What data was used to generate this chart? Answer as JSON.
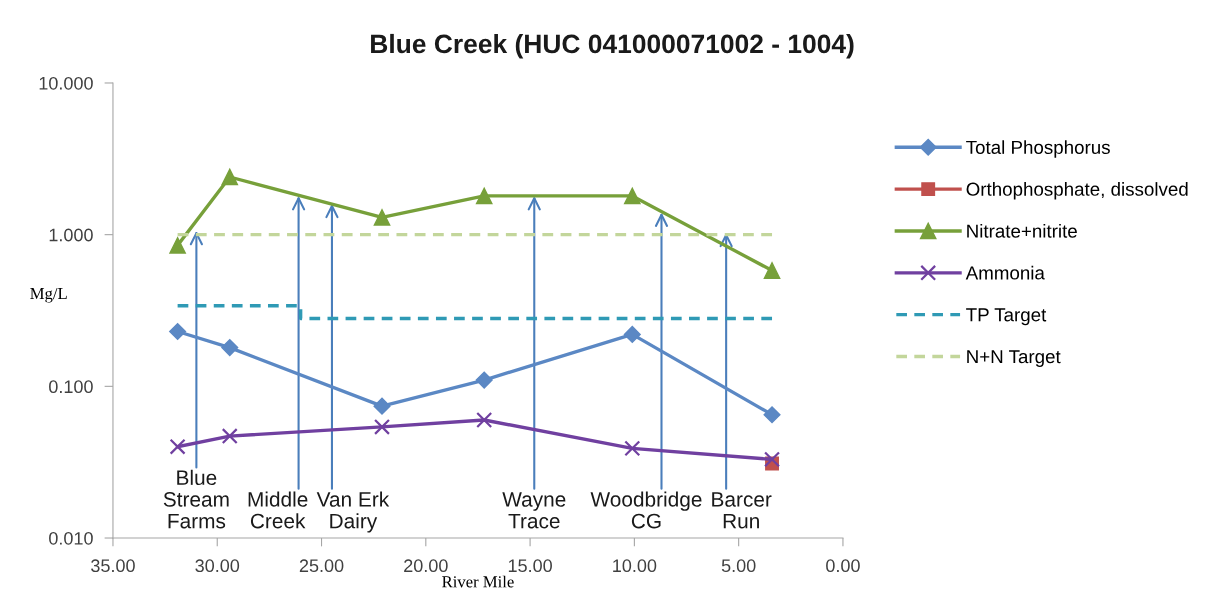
{
  "chart_data": {
    "type": "line",
    "title": "Blue Creek (HUC 041000071002 - 1004)",
    "xlabel": "River Mile",
    "ylabel": "Mg/L",
    "log": "y",
    "x": [
      31.9,
      29.4,
      22.1,
      17.2,
      10.1,
      3.4
    ],
    "xlim": [
      35,
      0
    ],
    "xticks": [
      {
        "value": 35,
        "label": "35.00"
      },
      {
        "value": 30,
        "label": "30.00"
      },
      {
        "value": 25,
        "label": "25.00"
      },
      {
        "value": 20,
        "label": "20.00"
      },
      {
        "value": 15,
        "label": "15.00"
      },
      {
        "value": 10,
        "label": "10.00"
      },
      {
        "value": 5,
        "label": "5.00"
      },
      {
        "value": 0,
        "label": "0.00"
      }
    ],
    "ylim": [
      0.01,
      10
    ],
    "yticks": [
      {
        "value": 0.01,
        "label": "0.010"
      },
      {
        "value": 0.1,
        "label": "0.100"
      },
      {
        "value": 1,
        "label": "1.000"
      },
      {
        "value": 10,
        "label": "10.000"
      }
    ],
    "legend": "right",
    "series": [
      {
        "name": "Total Phosphorus",
        "color": "#5b88c4",
        "marker": "diamond",
        "values": [
          0.23,
          0.18,
          0.074,
          0.11,
          0.22,
          0.065
        ]
      },
      {
        "name": "Orthophosphate, dissolved",
        "color": "#c0504d",
        "marker": "square",
        "x": [
          3.4
        ],
        "values": [
          0.031
        ]
      },
      {
        "name": "Nitrate+nitrite",
        "color": "#77a03a",
        "marker": "triangle",
        "values": [
          0.85,
          2.4,
          1.3,
          1.8,
          1.8,
          0.58
        ]
      },
      {
        "name": "Ammonia",
        "color": "#7040a0",
        "marker": "cross",
        "values": [
          0.04,
          0.047,
          0.054,
          0.06,
          0.039,
          0.033
        ]
      },
      {
        "name": "TP Target",
        "type": "step",
        "color": "#2f9ab5",
        "line_style": "dashed",
        "marker": "none",
        "x": [
          31.9,
          26.0,
          3.4
        ],
        "values": [
          0.34,
          0.28,
          0.28
        ]
      },
      {
        "name": "N+N Target",
        "color": "#c3d69b",
        "line_style": "dashed",
        "marker": "none",
        "x": [
          31.9,
          3.4
        ],
        "values": [
          1.0,
          1.0
        ]
      }
    ],
    "annotations": [
      {
        "text": "Blue\nStream\nFarms",
        "x": 31.0,
        "y": 1.06
      },
      {
        "text": "Middle\nCreek",
        "x": 26.1,
        "y": 1.8
      },
      {
        "text": "Van Erk\nDairy",
        "x": 24.5,
        "y": 1.6
      },
      {
        "text": "Wayne\nTrace",
        "x": 14.8,
        "y": 1.8
      },
      {
        "text": "Woodbridge\nCG",
        "x": 8.7,
        "y": 1.4
      },
      {
        "text": "Barcer\nRun",
        "x": 5.6,
        "y": 1.03
      }
    ]
  }
}
